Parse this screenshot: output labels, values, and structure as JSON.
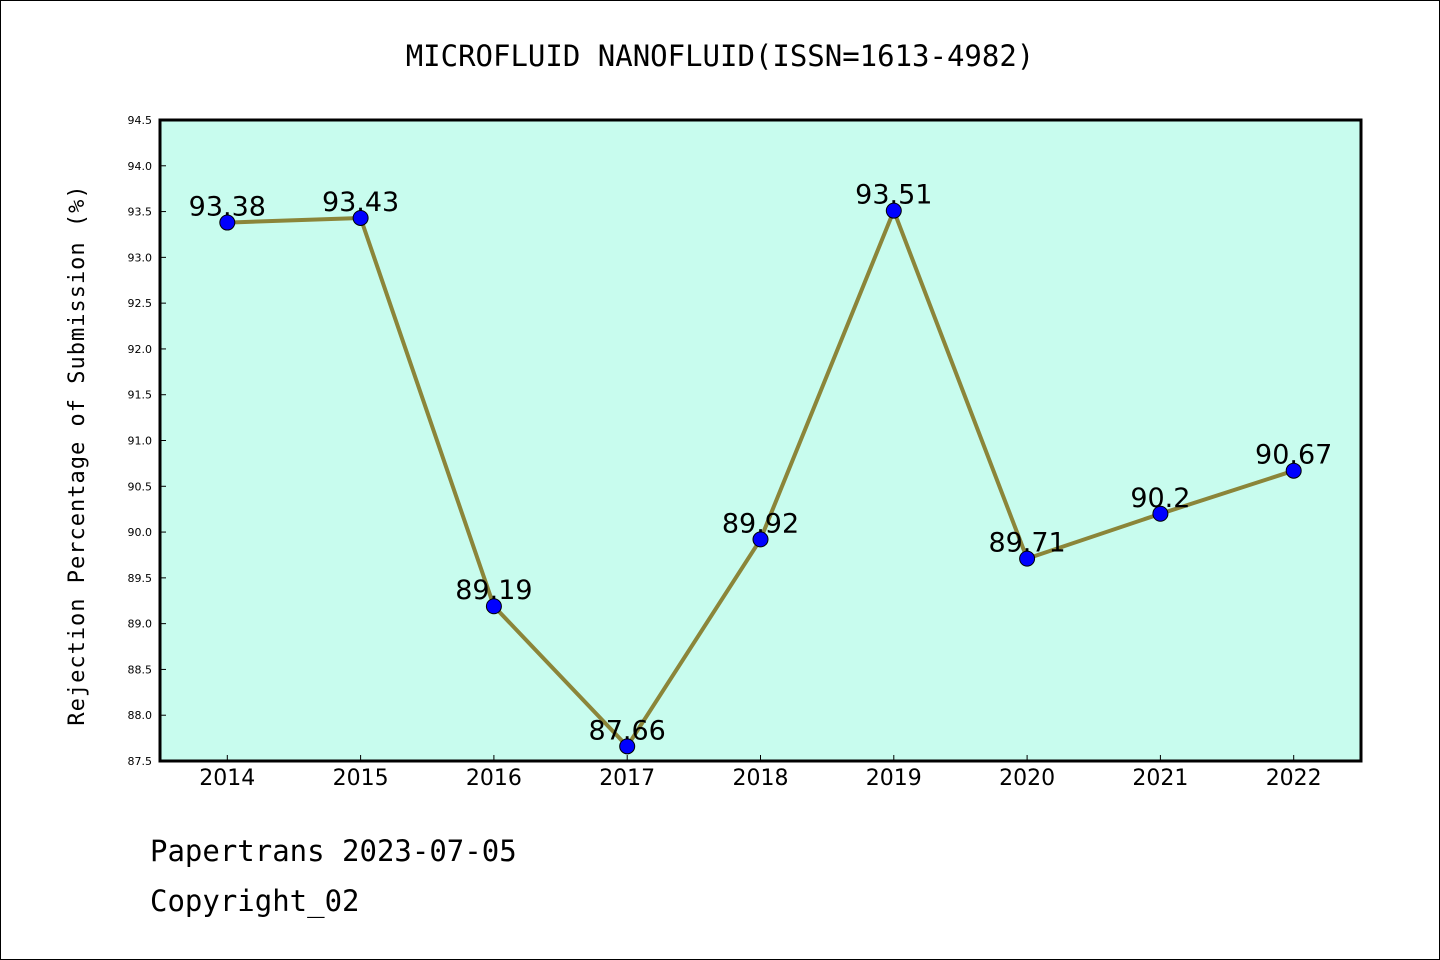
{
  "chart_data": {
    "type": "line",
    "title": "MICROFLUID NANOFLUID(ISSN=1613-4982)",
    "xlabel": "",
    "ylabel": "Rejection Percentage of Submission (%)",
    "categories": [
      "2014",
      "2015",
      "2016",
      "2017",
      "2018",
      "2019",
      "2020",
      "2021",
      "2022"
    ],
    "series": [
      {
        "values": [
          93.38,
          93.43,
          89.19,
          87.66,
          89.92,
          93.51,
          89.71,
          90.2,
          90.67
        ],
        "labels": [
          "93.38",
          "93.43",
          "89.19",
          "87.66",
          "89.92",
          "93.51",
          "89.71",
          "90.2",
          "90.67"
        ]
      }
    ],
    "ylim": [
      87.5,
      94.5
    ],
    "yticks": [
      "87.5",
      "88.0",
      "88.5",
      "89.0",
      "89.5",
      "90.0",
      "90.5",
      "91.0",
      "91.5",
      "92.0",
      "92.5",
      "93.0",
      "93.5",
      "94.0",
      "94.5"
    ],
    "grid": false,
    "colors": {
      "plot_background": "#c8fcee",
      "line": "#8b8539",
      "marker": "#0000ff"
    }
  },
  "footer": {
    "line1": "Papertrans 2023-07-05",
    "line2": "Copyright_02"
  }
}
